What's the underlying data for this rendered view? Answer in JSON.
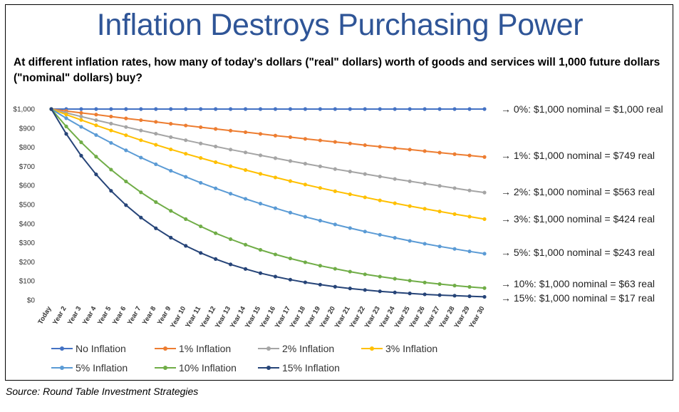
{
  "title": "Inflation Destroys Purchasing Power",
  "subtitle": "At different inflation rates, how many of today's dollars (\"real\" dollars) worth of goods and services will 1,000 future dollars (\"nominal\" dollars) buy?",
  "source": "Source: Round Table Investment Strategies",
  "colors": {
    "title": "#2f5597",
    "no_inflation": "#4472c4",
    "inf_1": "#ed7d31",
    "inf_2": "#a5a5a5",
    "inf_3": "#ffc000",
    "inf_5": "#5b9bd5",
    "inf_10": "#70ad47",
    "inf_15": "#264478"
  },
  "chart_data": {
    "type": "line",
    "categories": [
      "Today",
      "Year 2",
      "Year 3",
      "Year 4",
      "Year 5",
      "Year 6",
      "Year 7",
      "Year 8",
      "Year 9",
      "Year 10",
      "Year 11",
      "Year 12",
      "Year 13",
      "Year 14",
      "Year 15",
      "Year 16",
      "Year 17",
      "Year 18",
      "Year 19",
      "Year 20",
      "Year 21",
      "Year 22",
      "Year 23",
      "Year 24",
      "Year 25",
      "Year 26",
      "Year 27",
      "Year 28",
      "Year 29",
      "Year 30"
    ],
    "ylim": [
      0,
      1000
    ],
    "yticks": [
      0,
      100,
      200,
      300,
      400,
      500,
      600,
      700,
      800,
      900,
      1000
    ],
    "ytick_labels": [
      "$0",
      "$100",
      "$200",
      "$300",
      "$400",
      "$500",
      "$600",
      "$700",
      "$800",
      "$900",
      "$1,000"
    ],
    "grid": false,
    "legend_position": "bottom",
    "series": [
      {
        "name": "No Inflation",
        "color_key": "no_inflation",
        "values": [
          1000,
          1000,
          1000,
          1000,
          1000,
          1000,
          1000,
          1000,
          1000,
          1000,
          1000,
          1000,
          1000,
          1000,
          1000,
          1000,
          1000,
          1000,
          1000,
          1000,
          1000,
          1000,
          1000,
          1000,
          1000,
          1000,
          1000,
          1000,
          1000,
          1000
        ],
        "annotation": "→ 0%: $1,000 nominal = $1,000 real"
      },
      {
        "name": "1% Inflation",
        "color_key": "inf_1",
        "values": [
          1000,
          990,
          980,
          971,
          961,
          951,
          942,
          933,
          923,
          914,
          905,
          896,
          887,
          879,
          870,
          861,
          853,
          844,
          836,
          828,
          820,
          811,
          803,
          795,
          788,
          780,
          772,
          764,
          757,
          749
        ],
        "annotation": "→ 1%: $1,000 nominal = $749 real"
      },
      {
        "name": "2% Inflation",
        "color_key": "inf_2",
        "values": [
          1000,
          980,
          961,
          942,
          924,
          906,
          888,
          871,
          853,
          837,
          820,
          804,
          788,
          773,
          758,
          743,
          728,
          714,
          700,
          686,
          673,
          660,
          647,
          634,
          622,
          610,
          598,
          586,
          574,
          563
        ],
        "annotation": "→ 2%: $1,000 nominal = $563 real"
      },
      {
        "name": "3% Inflation",
        "color_key": "inf_3",
        "values": [
          1000,
          971,
          943,
          915,
          888,
          863,
          837,
          813,
          789,
          766,
          744,
          722,
          701,
          681,
          661,
          642,
          623,
          605,
          587,
          570,
          554,
          538,
          522,
          507,
          492,
          478,
          464,
          450,
          437,
          424
        ],
        "annotation": "→ 3%: $1,000 nominal = $424 real"
      },
      {
        "name": "5% Inflation",
        "color_key": "inf_5",
        "values": [
          1000,
          952,
          907,
          864,
          823,
          784,
          746,
          711,
          677,
          645,
          614,
          585,
          557,
          530,
          505,
          481,
          458,
          436,
          416,
          396,
          377,
          359,
          342,
          326,
          310,
          295,
          281,
          268,
          255,
          243
        ],
        "annotation": "→ 5%: $1,000 nominal = $243 real"
      },
      {
        "name": "10% Inflation",
        "color_key": "inf_10",
        "values": [
          1000,
          909,
          826,
          751,
          683,
          621,
          564,
          513,
          467,
          424,
          386,
          350,
          319,
          290,
          263,
          239,
          218,
          198,
          180,
          164,
          149,
          135,
          123,
          112,
          102,
          92,
          84,
          76,
          69,
          63
        ],
        "annotation": "→ 10%: $1,000 nominal = $63 real"
      },
      {
        "name": "15% Inflation",
        "color_key": "inf_15",
        "values": [
          1000,
          870,
          756,
          658,
          572,
          497,
          432,
          376,
          327,
          284,
          247,
          215,
          187,
          163,
          141,
          123,
          107,
          93,
          81,
          70,
          61,
          53,
          46,
          40,
          35,
          30,
          26,
          23,
          20,
          17
        ],
        "annotation": "→ 15%: $1,000 nominal = $17 real"
      }
    ]
  }
}
